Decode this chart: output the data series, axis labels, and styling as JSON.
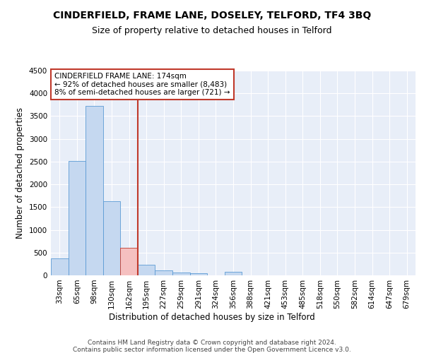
{
  "title": "CINDERFIELD, FRAME LANE, DOSELEY, TELFORD, TF4 3BQ",
  "subtitle": "Size of property relative to detached houses in Telford",
  "xlabel": "Distribution of detached houses by size in Telford",
  "ylabel": "Number of detached properties",
  "footer_line1": "Contains HM Land Registry data © Crown copyright and database right 2024.",
  "footer_line2": "Contains public sector information licensed under the Open Government Licence v3.0.",
  "categories": [
    "33sqm",
    "65sqm",
    "98sqm",
    "130sqm",
    "162sqm",
    "195sqm",
    "227sqm",
    "259sqm",
    "291sqm",
    "324sqm",
    "356sqm",
    "388sqm",
    "421sqm",
    "453sqm",
    "485sqm",
    "518sqm",
    "550sqm",
    "582sqm",
    "614sqm",
    "647sqm",
    "679sqm"
  ],
  "bar_values": [
    370,
    2510,
    3720,
    1630,
    600,
    230,
    110,
    65,
    45,
    0,
    70,
    0,
    0,
    0,
    0,
    0,
    0,
    0,
    0,
    0,
    0
  ],
  "bar_color": "#c5d8f0",
  "bar_edge_color": "#5b9bd5",
  "highlight_bar_index": 4,
  "highlight_bar_color": "#f5c0c0",
  "highlight_bar_edge_color": "#c0392b",
  "vline_color": "#c0392b",
  "annotation_text": "CINDERFIELD FRAME LANE: 174sqm\n← 92% of detached houses are smaller (8,483)\n8% of semi-detached houses are larger (721) →",
  "annotation_box_color": "white",
  "annotation_box_edge_color": "#c0392b",
  "ylim": [
    0,
    4500
  ],
  "yticks": [
    0,
    500,
    1000,
    1500,
    2000,
    2500,
    3000,
    3500,
    4000,
    4500
  ],
  "background_color": "#e8eef8",
  "grid_color": "white",
  "title_fontsize": 10,
  "subtitle_fontsize": 9,
  "axis_label_fontsize": 8.5,
  "tick_fontsize": 7.5,
  "annotation_fontsize": 7.5,
  "footer_fontsize": 6.5
}
